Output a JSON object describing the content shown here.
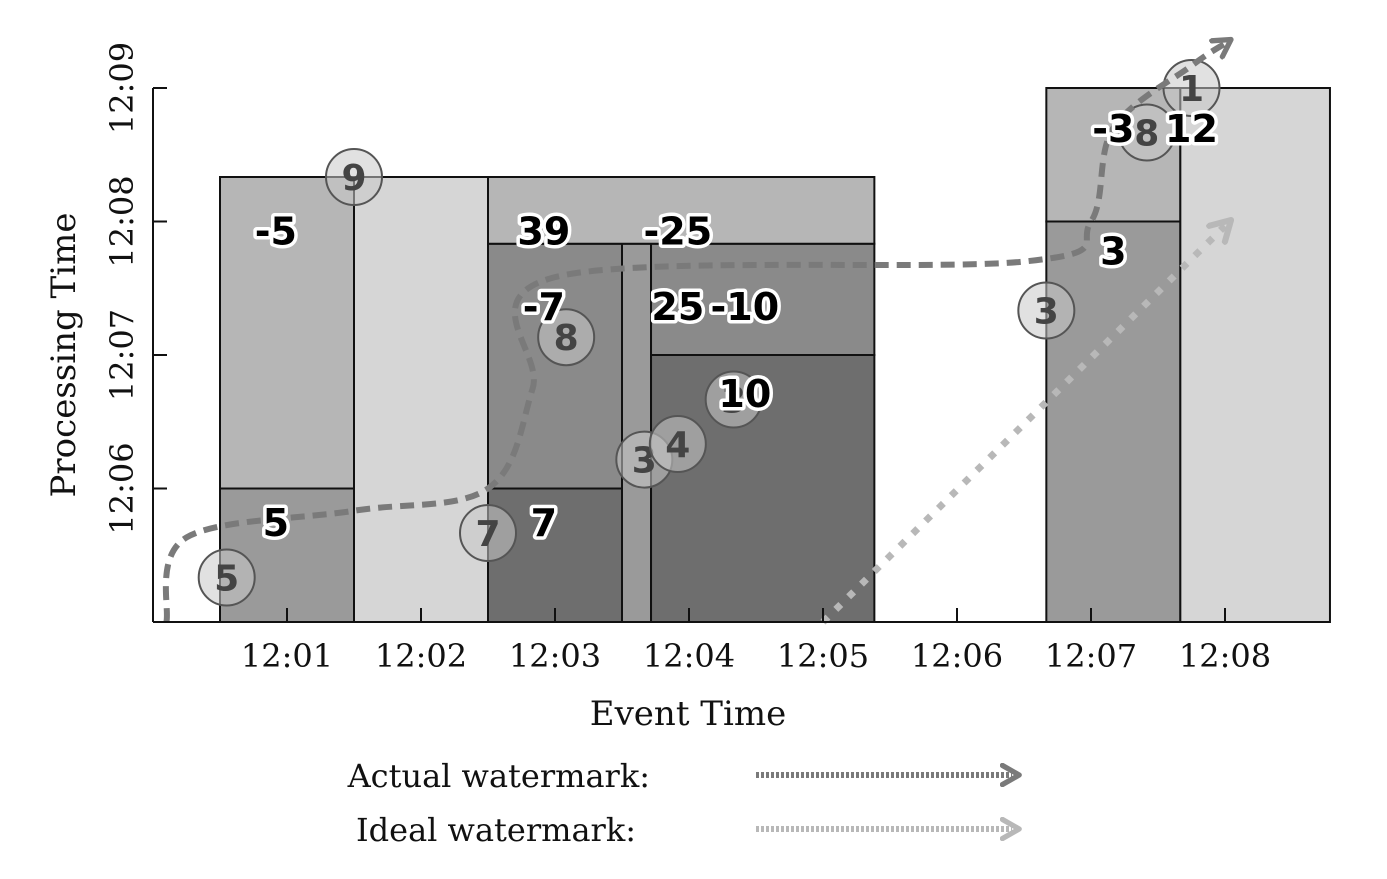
{
  "axes": {
    "xlabel": "Event Time",
    "ylabel": "Processing Time",
    "x_ticks": [
      "12:01",
      "12:02",
      "12:03",
      "12:04",
      "12:05",
      "12:06",
      "12:07",
      "12:08"
    ],
    "y_ticks": [
      "12:06",
      "12:07",
      "12:08",
      "12:09"
    ]
  },
  "panes": [
    {
      "x0": "12:00:30",
      "x1": "12:01:30",
      "t0": "12:05:00",
      "t1": "12:06:00",
      "fill": "#9a9a9a"
    },
    {
      "x0": "12:00:30",
      "x1": "12:01:30",
      "t0": "12:06:00",
      "t1": "12:08:20",
      "fill": "#b6b6b6"
    },
    {
      "x0": "12:01:30",
      "x1": "12:02:30",
      "t0": "12:05:00",
      "t1": "12:08:20",
      "fill": "#d6d6d6"
    },
    {
      "x0": "12:02:30",
      "x1": "12:03:30",
      "t0": "12:05:00",
      "t1": "12:06:00",
      "fill": "#6e6e6e"
    },
    {
      "x0": "12:02:30",
      "x1": "12:03:30",
      "t0": "12:06:00",
      "t1": "12:07:50",
      "fill": "#8a8a8a"
    },
    {
      "x0": "12:03:30",
      "x1": "12:03:43",
      "t0": "12:05:00",
      "t1": "12:07:50",
      "fill": "#9a9a9a"
    },
    {
      "x0": "12:03:43",
      "x1": "12:05:23",
      "t0": "12:05:00",
      "t1": "12:07:00",
      "fill": "#6e6e6e"
    },
    {
      "x0": "12:03:43",
      "x1": "12:05:23",
      "t0": "12:07:00",
      "t1": "12:07:50",
      "fill": "#8a8a8a"
    },
    {
      "x0": "12:02:30",
      "x1": "12:05:23",
      "t0": "12:07:50",
      "t1": "12:08:20",
      "fill": "#b6b6b6"
    },
    {
      "x0": "12:06:40",
      "x1": "12:07:40",
      "t0": "12:05:00",
      "t1": "12:08:00",
      "fill": "#9a9a9a"
    },
    {
      "x0": "12:06:40",
      "x1": "12:07:40",
      "t0": "12:08:00",
      "t1": "12:09:00",
      "fill": "#b6b6b6"
    },
    {
      "x0": "12:07:40",
      "x1": "12:08:47",
      "t0": "12:05:00",
      "t1": "12:09:00",
      "fill": "#d6d6d6"
    }
  ],
  "events": [
    {
      "label": "5",
      "event_time": "12:00:33",
      "processing_time": "12:05:20"
    },
    {
      "label": "9",
      "event_time": "12:01:30",
      "processing_time": "12:08:20"
    },
    {
      "label": "7",
      "event_time": "12:02:30",
      "processing_time": "12:05:40"
    },
    {
      "label": "8",
      "event_time": "12:03:05",
      "processing_time": "12:07:08"
    },
    {
      "label": "3",
      "event_time": "12:03:40",
      "processing_time": "12:06:13"
    },
    {
      "label": "4",
      "event_time": "12:03:55",
      "processing_time": "12:06:20"
    },
    {
      "label": "3",
      "event_time": "12:04:20",
      "processing_time": "12:06:40"
    },
    {
      "label": "3",
      "event_time": "12:06:40",
      "processing_time": "12:07:20"
    },
    {
      "label": "8",
      "event_time": "12:07:25",
      "processing_time": "12:08:40"
    },
    {
      "label": "1",
      "event_time": "12:07:45",
      "processing_time": "12:09:00"
    }
  ],
  "pane_values": [
    {
      "text": "-5",
      "x": "12:00:55",
      "t": "12:07:56"
    },
    {
      "text": "5",
      "x": "12:00:55",
      "t": "12:05:45"
    },
    {
      "text": "39",
      "x": "12:02:55",
      "t": "12:07:56"
    },
    {
      "text": "-25",
      "x": "12:03:55",
      "t": "12:07:56"
    },
    {
      "text": "-7",
      "x": "12:02:55",
      "t": "12:07:22"
    },
    {
      "text": "25",
      "x": "12:03:55",
      "t": "12:07:22"
    },
    {
      "text": "-10",
      "x": "12:04:25",
      "t": "12:07:22"
    },
    {
      "text": "10",
      "x": "12:04:25",
      "t": "12:06:43"
    },
    {
      "text": "7",
      "x": "12:02:55",
      "t": "12:05:45"
    },
    {
      "text": "-3",
      "x": "12:07:10",
      "t": "12:08:42"
    },
    {
      "text": "12",
      "x": "12:07:45",
      "t": "12:08:42"
    },
    {
      "text": "3",
      "x": "12:07:10",
      "t": "12:07:47"
    }
  ],
  "actual_watermark": {
    "label": "Actual watermark:",
    "color": "#7a7a7a",
    "points": [
      [
        "12:00:06",
        "12:05:00"
      ],
      [
        "12:00:15",
        "12:05:38"
      ],
      [
        "12:01:30",
        "12:05:50"
      ],
      [
        "12:02:30",
        "12:06:00"
      ],
      [
        "12:02:50",
        "12:06:45"
      ],
      [
        "12:03:00",
        "12:07:35"
      ],
      [
        "12:06:30",
        "12:07:42"
      ],
      [
        "12:07:00",
        "12:08:00"
      ],
      [
        "12:07:10",
        "12:08:42"
      ],
      [
        "12:07:45",
        "12:09:10"
      ],
      [
        "12:08:00",
        "12:09:20"
      ]
    ]
  },
  "ideal_watermark": {
    "label": "Ideal watermark:",
    "color": "#b8b8b8",
    "points": [
      [
        "12:05:00",
        "12:05:00"
      ],
      [
        "12:08:00",
        "12:07:58"
      ]
    ]
  }
}
